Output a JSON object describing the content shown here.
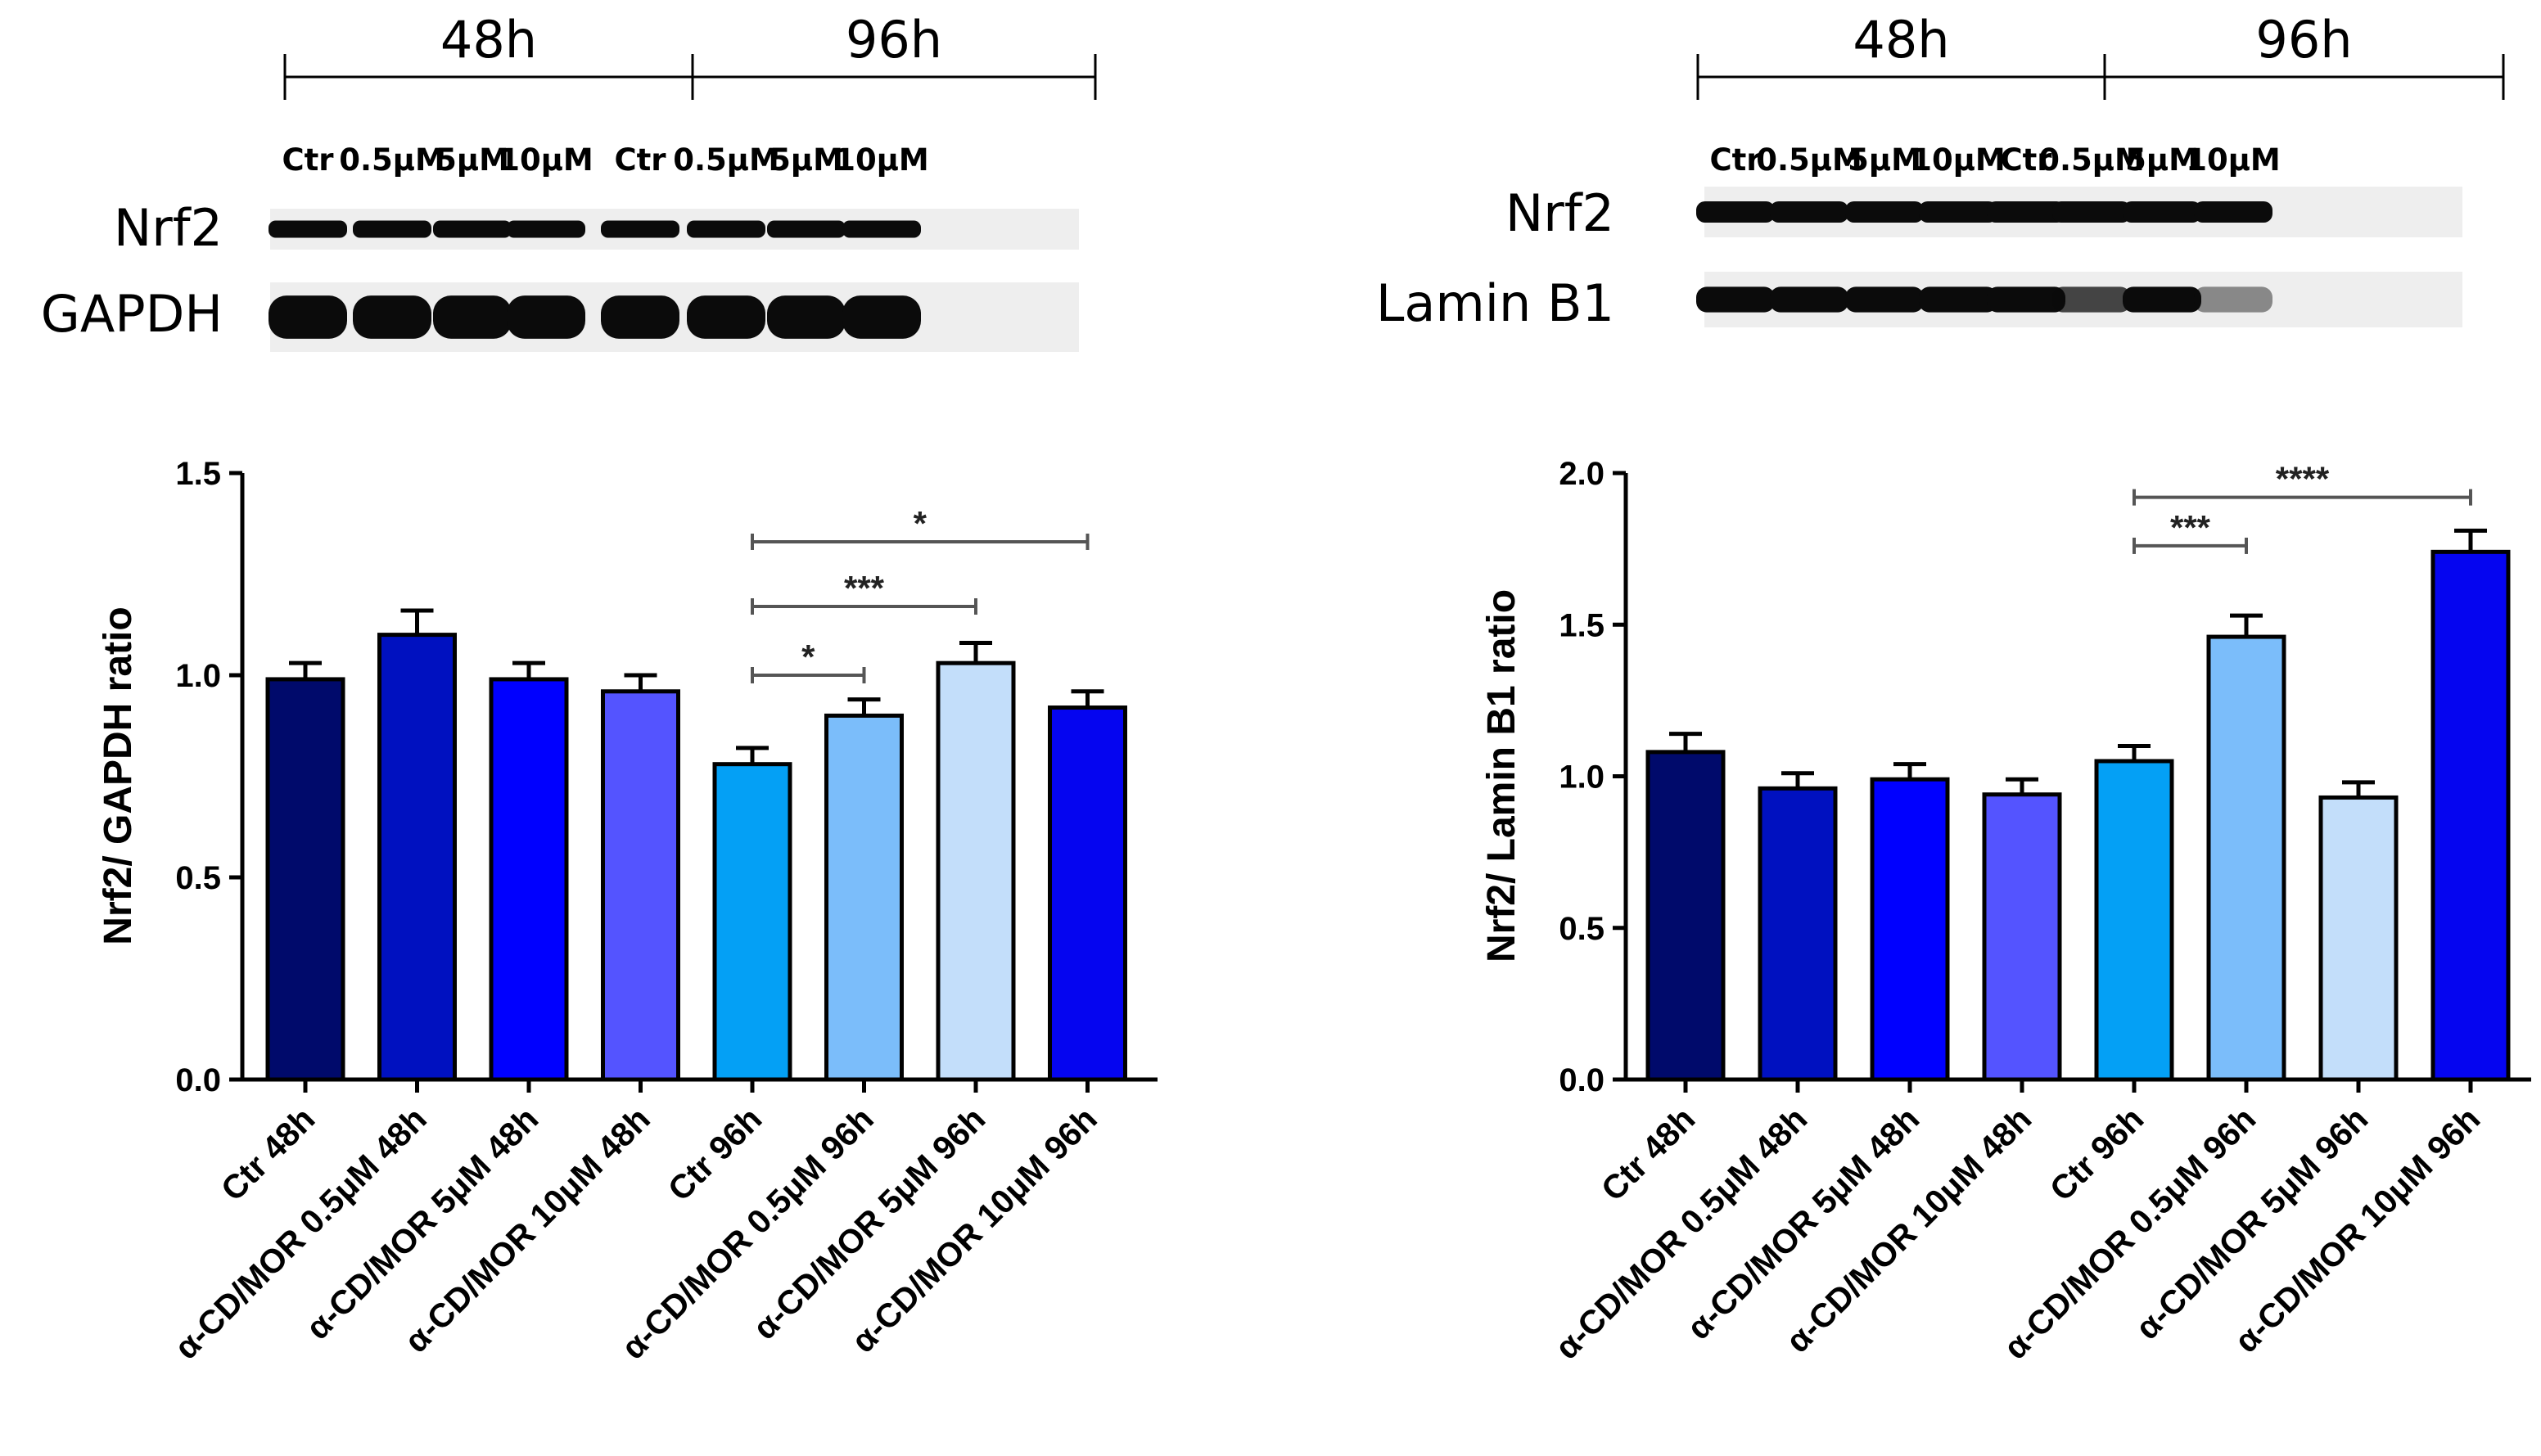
{
  "chart_data": [
    {
      "type": "bar",
      "panel": "left",
      "blot": {
        "time_labels": [
          "48h",
          "96h"
        ],
        "lane_labels": [
          "Ctr",
          "0.5μM",
          "5μM",
          "10μM",
          "Ctr",
          "0.5μM",
          "5μM",
          "10μM"
        ],
        "row_labels": [
          "Nrf2",
          "GAPDH"
        ]
      },
      "categories": [
        "Ctr 48h",
        "α-CD/MOR 0.5μM 48h",
        "α-CD/MOR 5μM 48h",
        "α-CD/MOR 10μM 48h",
        "Ctr 96h",
        "α-CD/MOR 0.5μM 96h",
        "α-CD/MOR 5μM 96h",
        "α-CD/MOR 10μM 96h"
      ],
      "values": [
        0.99,
        1.1,
        0.99,
        0.96,
        0.78,
        0.9,
        1.03,
        0.92
      ],
      "errors": [
        0.04,
        0.06,
        0.04,
        0.04,
        0.04,
        0.04,
        0.05,
        0.04
      ],
      "colors": [
        "#000a6b",
        "#0011c0",
        "#0000ff",
        "#5454ff",
        "#04a0f5",
        "#7bbdfa",
        "#c3defa",
        "#0505f0"
      ],
      "ylabel": "Nrf2/ GAPDH ratio",
      "ylim": [
        0,
        1.5
      ],
      "yticks": [
        "0.0",
        "0.5",
        "1.0",
        "1.5"
      ],
      "significance": [
        {
          "from": 4,
          "to": 5,
          "label": "*",
          "y": 1.0
        },
        {
          "from": 4,
          "to": 6,
          "label": "***",
          "y": 1.17
        },
        {
          "from": 4,
          "to": 7,
          "label": "*",
          "y": 1.33
        }
      ]
    },
    {
      "type": "bar",
      "panel": "right",
      "blot": {
        "time_labels": [
          "48h",
          "96h"
        ],
        "lane_labels": [
          "Ctr",
          "0.5μM",
          "5μM",
          "10μM",
          "Ctr",
          "0.5μM",
          "5μM",
          "10μM"
        ],
        "row_labels": [
          "Nrf2",
          "Lamin B1"
        ]
      },
      "categories": [
        "Ctr 48h",
        "α-CD/MOR 0.5μM 48h",
        "α-CD/MOR 5μM 48h",
        "α-CD/MOR 10μM 48h",
        "Ctr 96h",
        "α-CD/MOR 0.5μM 96h",
        "α-CD/MOR 5μM 96h",
        "α-CD/MOR 10μM 96h"
      ],
      "values": [
        1.08,
        0.96,
        0.99,
        0.94,
        1.05,
        1.46,
        0.93,
        1.74
      ],
      "errors": [
        0.06,
        0.05,
        0.05,
        0.05,
        0.05,
        0.07,
        0.05,
        0.07
      ],
      "colors": [
        "#000a6b",
        "#0011c0",
        "#0000ff",
        "#5454ff",
        "#04a0f5",
        "#7bbdfa",
        "#c3defa",
        "#0505f0"
      ],
      "ylabel": "Nrf2/ Lamin B1 ratio",
      "ylim": [
        0,
        2.0
      ],
      "yticks": [
        "0.0",
        "0.5",
        "1.0",
        "1.5",
        "2.0"
      ],
      "significance": [
        {
          "from": 4,
          "to": 5,
          "label": "***",
          "y": 1.76
        },
        {
          "from": 4,
          "to": 7,
          "label": "****",
          "y": 1.92
        }
      ]
    }
  ]
}
